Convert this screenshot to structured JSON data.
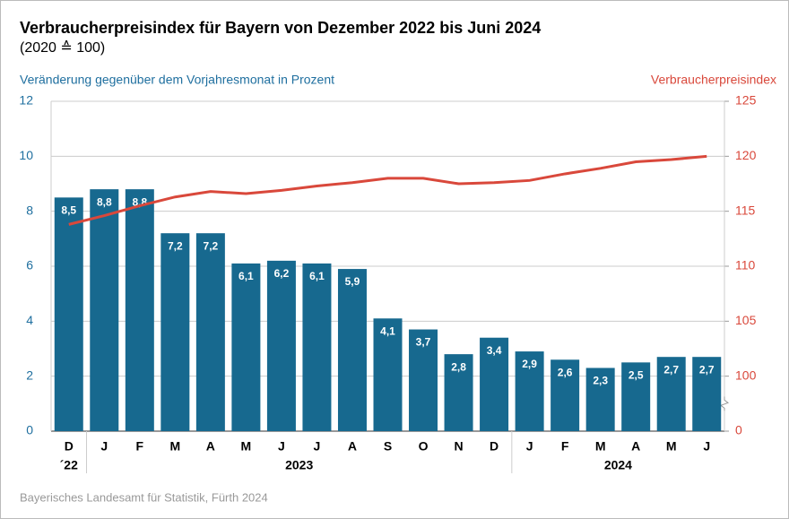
{
  "chart_data": {
    "type": "bar_line",
    "title": "Verbraucherpreisindex für Bayern von Dezember 2022 bis Juni 2024",
    "subtitle": "(2020 ≙ 100)",
    "y_label": "Veränderung gegenüber dem Vorjahresmonat in Prozent",
    "y2_label": "Verbraucherpreisindex",
    "source": "Bayerisches Landesamt für Statistik, Fürth 2024",
    "categories": [
      "D",
      "J",
      "F",
      "M",
      "A",
      "M",
      "J",
      "J",
      "A",
      "S",
      "O",
      "N",
      "D",
      "J",
      "F",
      "M",
      "A",
      "M",
      "J"
    ],
    "year_groups": [
      {
        "label": "´22",
        "start": 0,
        "end": 0
      },
      {
        "label": "2023",
        "start": 1,
        "end": 12
      },
      {
        "label": "2024",
        "start": 13,
        "end": 18
      }
    ],
    "series": [
      {
        "name": "Veränderung gegenüber dem Vorjahresmonat in Prozent",
        "kind": "bar",
        "color": "#17698f",
        "values": [
          8.5,
          8.8,
          8.8,
          7.2,
          7.2,
          6.1,
          6.2,
          6.1,
          5.9,
          4.1,
          3.7,
          2.8,
          3.4,
          2.9,
          2.6,
          2.3,
          2.5,
          2.7,
          2.7
        ],
        "value_labels": [
          "8,5",
          "8,8",
          "8,8",
          "7,2",
          "7,2",
          "6,1",
          "6,2",
          "6,1",
          "5,9",
          "4,1",
          "3,7",
          "2,8",
          "3,4",
          "2,9",
          "2,6",
          "2,3",
          "2,5",
          "2,7",
          "2,7"
        ]
      },
      {
        "name": "Verbraucherpreisindex",
        "kind": "line",
        "axis": "y2",
        "color": "#d9483b",
        "values": [
          113.8,
          114.6,
          115.5,
          116.3,
          116.8,
          116.6,
          116.9,
          117.3,
          117.6,
          118.0,
          118.0,
          117.5,
          117.6,
          117.8,
          118.4,
          118.9,
          119.5,
          119.7,
          120.0
        ]
      }
    ],
    "ylim": [
      0,
      12
    ],
    "yticks": [
      0,
      2,
      4,
      6,
      8,
      10,
      12
    ],
    "y2lim": [
      0,
      125
    ],
    "y2ticks": [
      0,
      100,
      105,
      110,
      115,
      120,
      125
    ],
    "y2_axis_break": true,
    "grid": true,
    "y_color": "#1f6f9f",
    "y2_color": "#d9483b"
  }
}
